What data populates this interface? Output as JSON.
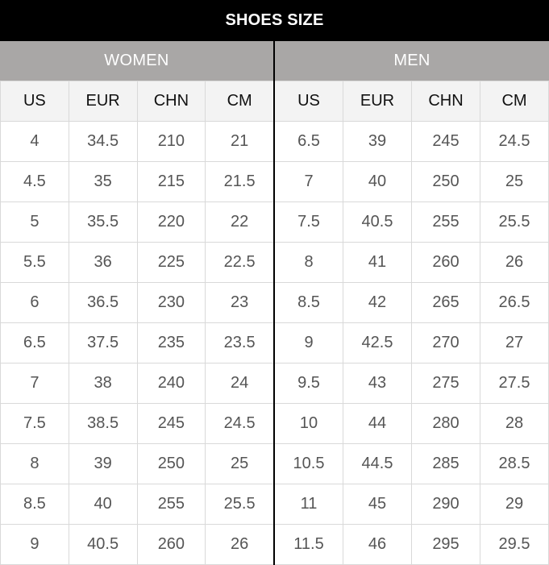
{
  "title": "SHOES SIZE",
  "women": {
    "label": "WOMEN",
    "columns": [
      "US",
      "EUR",
      "CHN",
      "CM"
    ],
    "rows": [
      [
        "4",
        "34.5",
        "210",
        "21"
      ],
      [
        "4.5",
        "35",
        "215",
        "21.5"
      ],
      [
        "5",
        "35.5",
        "220",
        "22"
      ],
      [
        "5.5",
        "36",
        "225",
        "22.5"
      ],
      [
        "6",
        "36.5",
        "230",
        "23"
      ],
      [
        "6.5",
        "37.5",
        "235",
        "23.5"
      ],
      [
        "7",
        "38",
        "240",
        "24"
      ],
      [
        "7.5",
        "38.5",
        "245",
        "24.5"
      ],
      [
        "8",
        "39",
        "250",
        "25"
      ],
      [
        "8.5",
        "40",
        "255",
        "25.5"
      ],
      [
        "9",
        "40.5",
        "260",
        "26"
      ]
    ]
  },
  "men": {
    "label": "MEN",
    "columns": [
      "US",
      "EUR",
      "CHN",
      "CM"
    ],
    "rows": [
      [
        "6.5",
        "39",
        "245",
        "24.5"
      ],
      [
        "7",
        "40",
        "250",
        "25"
      ],
      [
        "7.5",
        "40.5",
        "255",
        "25.5"
      ],
      [
        "8",
        "41",
        "260",
        "26"
      ],
      [
        "8.5",
        "42",
        "265",
        "26.5"
      ],
      [
        "9",
        "42.5",
        "270",
        "27"
      ],
      [
        "9.5",
        "43",
        "275",
        "27.5"
      ],
      [
        "10",
        "44",
        "280",
        "28"
      ],
      [
        "10.5",
        "44.5",
        "285",
        "28.5"
      ],
      [
        "11",
        "45",
        "290",
        "29"
      ],
      [
        "11.5",
        "46",
        "295",
        "29.5"
      ]
    ]
  },
  "colors": {
    "title_bg": "#000000",
    "group_header_bg": "#a9a7a6",
    "column_header_bg": "#f3f3f3",
    "grid_line": "#d9d9d9"
  }
}
